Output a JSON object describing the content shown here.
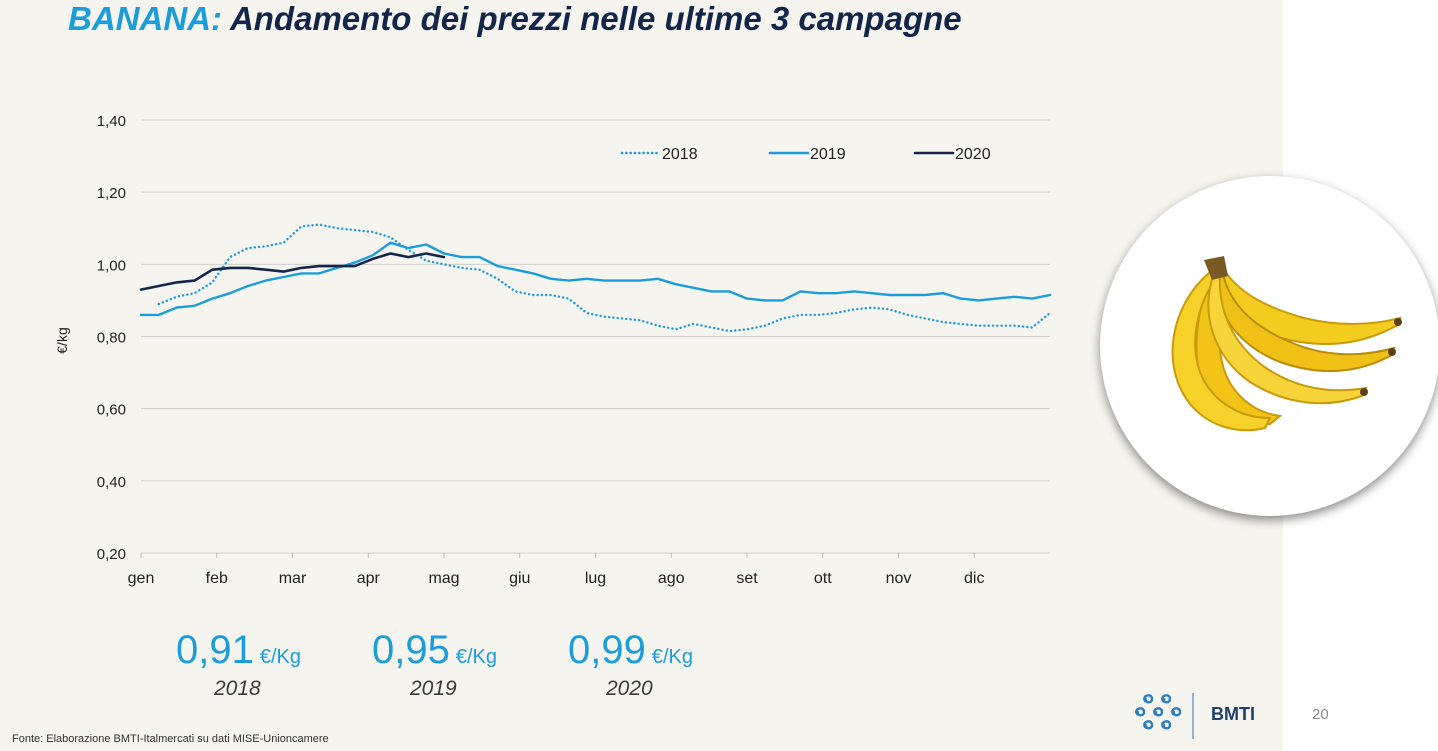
{
  "slide": {
    "title_accent": "BANANA:",
    "title_rest": "Andamento dei prezzi nelle ultime 3 campagne",
    "source": "Fonte: Elaborazione BMTI-Italmercati su dati MISE-Unioncamere",
    "page_number": "20",
    "logo_text": "BMTI",
    "image_subject": "banana-bunch"
  },
  "colors": {
    "title": "#14254a",
    "accent": "#1b9ddc",
    "s2018": "#1b9ddc",
    "s2019": "#1b9ddc",
    "s2020": "#14254a"
  },
  "stats": [
    {
      "value": "0,91",
      "unit": "€/Kg",
      "year": "2018"
    },
    {
      "value": "0,95",
      "unit": "€/Kg",
      "year": "2019"
    },
    {
      "value": "0,99",
      "unit": "€/Kg",
      "year": "2020"
    }
  ],
  "chart_data": {
    "type": "line",
    "title": "",
    "xlabel": "",
    "ylabel": "€/kg",
    "ylim": [
      0.2,
      1.4
    ],
    "yticks": [
      "0,20",
      "0,40",
      "0,60",
      "0,80",
      "1,00",
      "1,20",
      "1,40"
    ],
    "ytick_values": [
      0.2,
      0.4,
      0.6,
      0.8,
      1.0,
      1.2,
      1.4
    ],
    "months": [
      "gen",
      "feb",
      "mar",
      "apr",
      "mag",
      "giu",
      "lug",
      "ago",
      "set",
      "ott",
      "nov",
      "dic"
    ],
    "x_unit": "week",
    "x_range": [
      1,
      52
    ],
    "grid": true,
    "legend": "top-right",
    "series": [
      {
        "name": "2018",
        "style": "dotted",
        "x": [
          2,
          3,
          4,
          5,
          6,
          7,
          8,
          9,
          10,
          11,
          12,
          13,
          14,
          15,
          16,
          17,
          18,
          19,
          20,
          21,
          22,
          23,
          24,
          25,
          26,
          27,
          28,
          29,
          30,
          31,
          32,
          33,
          34,
          35,
          36,
          37,
          38,
          39,
          40,
          41,
          42,
          43,
          44,
          45,
          46,
          47,
          48,
          49,
          50,
          51,
          52
        ],
        "y": [
          0.89,
          0.91,
          0.92,
          0.95,
          1.02,
          1.045,
          1.05,
          1.06,
          1.105,
          1.11,
          1.1,
          1.095,
          1.09,
          1.075,
          1.04,
          1.01,
          1.0,
          0.99,
          0.985,
          0.96,
          0.925,
          0.915,
          0.915,
          0.905,
          0.865,
          0.855,
          0.85,
          0.845,
          0.83,
          0.82,
          0.835,
          0.825,
          0.815,
          0.82,
          0.83,
          0.85,
          0.86,
          0.86,
          0.865,
          0.875,
          0.88,
          0.875,
          0.86,
          0.85,
          0.84,
          0.835,
          0.83,
          0.83,
          0.83,
          0.825,
          0.865
        ]
      },
      {
        "name": "2019",
        "style": "solid",
        "x": [
          1,
          2,
          3,
          4,
          5,
          6,
          7,
          8,
          9,
          10,
          11,
          12,
          13,
          14,
          15,
          16,
          17,
          18,
          19,
          20,
          21,
          22,
          23,
          24,
          25,
          26,
          27,
          28,
          29,
          30,
          31,
          32,
          33,
          34,
          35,
          36,
          37,
          38,
          39,
          40,
          41,
          42,
          43,
          44,
          45,
          46,
          47,
          48,
          49,
          50,
          51,
          52
        ],
        "y": [
          0.86,
          0.86,
          0.88,
          0.885,
          0.905,
          0.92,
          0.94,
          0.955,
          0.965,
          0.975,
          0.975,
          0.99,
          1.005,
          1.025,
          1.06,
          1.045,
          1.055,
          1.03,
          1.02,
          1.02,
          0.995,
          0.985,
          0.975,
          0.96,
          0.955,
          0.96,
          0.955,
          0.955,
          0.955,
          0.96,
          0.945,
          0.935,
          0.925,
          0.925,
          0.905,
          0.9,
          0.9,
          0.925,
          0.92,
          0.92,
          0.925,
          0.92,
          0.915,
          0.915,
          0.915,
          0.92,
          0.905,
          0.9,
          0.905,
          0.91,
          0.905,
          0.915
        ]
      },
      {
        "name": "2020",
        "style": "solid",
        "x": [
          1,
          2,
          3,
          4,
          5,
          6,
          7,
          8,
          9,
          10,
          11,
          12,
          13,
          14,
          15,
          16,
          17,
          18
        ],
        "y": [
          0.93,
          0.94,
          0.95,
          0.955,
          0.985,
          0.99,
          0.99,
          0.985,
          0.98,
          0.99,
          0.995,
          0.995,
          0.995,
          1.015,
          1.03,
          1.02,
          1.03,
          1.02
        ]
      }
    ]
  }
}
